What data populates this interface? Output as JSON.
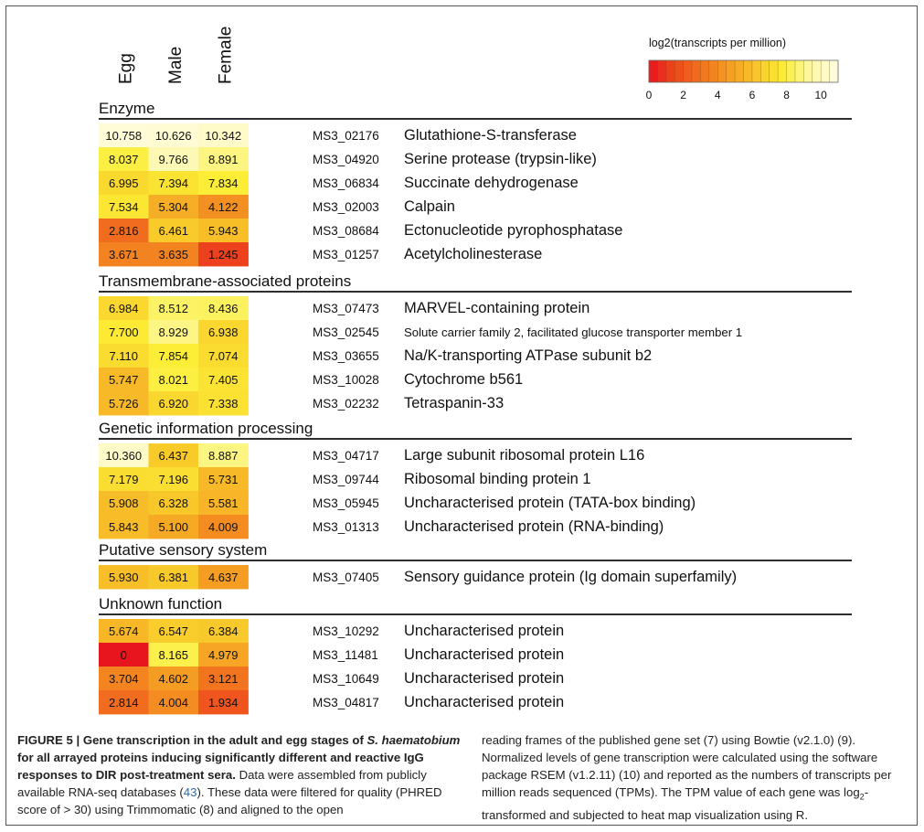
{
  "chart_data": {
    "type": "heatmap",
    "columns": [
      "Egg",
      "Male",
      "Female"
    ],
    "legend": {
      "title": "log2(transcripts per million)",
      "ticks": [
        0,
        2,
        4,
        6,
        8,
        10
      ],
      "range": [
        0,
        11
      ],
      "colors": [
        "#e8141e",
        "#ee4b1c",
        "#f2751f",
        "#f59f23",
        "#f8c72a",
        "#fcee36",
        "#fdf8a8",
        "#fffde0"
      ]
    },
    "groups": [
      {
        "title": "Enzyme",
        "rows": [
          {
            "id": "MS3_02176",
            "name": "Glutathione-S-transferase",
            "values": [
              10.758,
              10.626,
              10.342
            ],
            "labels": [
              "10.758",
              "10.626",
              "10.342"
            ]
          },
          {
            "id": "MS3_04920",
            "name": "Serine protease (trypsin-like)",
            "values": [
              8.037,
              9.766,
              8.891
            ],
            "labels": [
              "8.037",
              "9.766",
              "8.891"
            ]
          },
          {
            "id": "MS3_06834",
            "name": "Succinate dehydrogenase",
            "values": [
              6.995,
              7.394,
              7.834
            ],
            "labels": [
              "6.995",
              "7.394",
              "7.834"
            ]
          },
          {
            "id": "MS3_02003",
            "name": "Calpain",
            "values": [
              7.534,
              5.304,
              4.122
            ],
            "labels": [
              "7.534",
              "5.304",
              "4.122"
            ]
          },
          {
            "id": "MS3_08684",
            "name": "Ectonucleotide pyrophosphatase",
            "values": [
              2.816,
              6.461,
              5.943
            ],
            "labels": [
              "2.816",
              "6.461",
              "5.943"
            ]
          },
          {
            "id": "MS3_01257",
            "name": "Acetylcholinesterase",
            "values": [
              3.671,
              3.635,
              1.245
            ],
            "labels": [
              "3.671",
              "3.635",
              "1.245"
            ]
          }
        ]
      },
      {
        "title": "Transmembrane-associated proteins",
        "rows": [
          {
            "id": "MS3_07473",
            "name": "MARVEL-containing protein",
            "values": [
              6.984,
              8.512,
              8.436
            ],
            "labels": [
              "6.984",
              "8.512",
              "8.436"
            ]
          },
          {
            "id": "MS3_02545",
            "name": "Solute carrier family 2, facilitated glucose transporter member 1",
            "values": [
              7.7,
              8.929,
              6.938
            ],
            "labels": [
              "7.700",
              "8.929",
              "6.938"
            ],
            "small": true
          },
          {
            "id": "MS3_03655",
            "name": "Na/K-transporting ATPase subunit b2",
            "values": [
              7.11,
              7.854,
              7.074
            ],
            "labels": [
              "7.110",
              "7.854",
              "7.074"
            ]
          },
          {
            "id": "MS3_10028",
            "name": "Cytochrome b561",
            "values": [
              5.747,
              8.021,
              7.405
            ],
            "labels": [
              "5.747",
              "8.021",
              "7.405"
            ]
          },
          {
            "id": "MS3_02232",
            "name": "Tetraspanin-33",
            "values": [
              5.726,
              6.92,
              7.338
            ],
            "labels": [
              "5.726",
              "6.920",
              "7.338"
            ]
          }
        ]
      },
      {
        "title": "Genetic information processing",
        "rows": [
          {
            "id": "MS3_04717",
            "name": "Large subunit ribosomal protein L16",
            "values": [
              10.36,
              6.437,
              8.887
            ],
            "labels": [
              "10.360",
              "6.437",
              "8.887"
            ]
          },
          {
            "id": "MS3_09744",
            "name": "Ribosomal binding protein 1",
            "values": [
              7.179,
              7.196,
              5.731
            ],
            "labels": [
              "7.179",
              "7.196",
              "5.731"
            ]
          },
          {
            "id": "MS3_05945",
            "name": "Uncharacterised protein (TATA-box binding)",
            "values": [
              5.908,
              6.328,
              5.581
            ],
            "labels": [
              "5.908",
              "6.328",
              "5.581"
            ]
          },
          {
            "id": "MS3_01313",
            "name": "Uncharacterised protein (RNA-binding)",
            "values": [
              5.843,
              5.1,
              4.009
            ],
            "labels": [
              "5.843",
              "5.100",
              "4.009"
            ]
          }
        ]
      },
      {
        "title": "Putative sensory system",
        "rows": [
          {
            "id": "MS3_07405",
            "name": "Sensory guidance protein (Ig domain superfamily)",
            "values": [
              5.93,
              6.381,
              4.637
            ],
            "labels": [
              "5.930",
              "6.381",
              "4.637"
            ]
          }
        ]
      },
      {
        "title": "Unknown function",
        "rows": [
          {
            "id": "MS3_10292",
            "name": "Uncharacterised protein",
            "values": [
              5.674,
              6.547,
              6.384
            ],
            "labels": [
              "5.674",
              "6.547",
              "6.384"
            ]
          },
          {
            "id": "MS3_11481",
            "name": "Uncharacterised protein",
            "values": [
              0,
              8.165,
              4.979
            ],
            "labels": [
              "0",
              "8.165",
              "4.979"
            ]
          },
          {
            "id": "MS3_10649",
            "name": "Uncharacterised protein",
            "values": [
              3.704,
              4.602,
              3.121
            ],
            "labels": [
              "3.704",
              "4.602",
              "3.121"
            ]
          },
          {
            "id": "MS3_04817",
            "name": "Uncharacterised protein",
            "values": [
              2.814,
              4.004,
              1.934
            ],
            "labels": [
              "2.814",
              "4.004",
              "1.934"
            ]
          }
        ]
      }
    ]
  },
  "caption": {
    "label": "FIGURE 5 | Gene transcription in the adult and egg stages of ",
    "species": "S. haematobium",
    "title_rest": " for all arrayed proteins inducing significantly different and reactive IgG responses to DIR post-treatment sera.",
    "left_text_1": " Data were assembled from publicly available RNA-seq databases (",
    "ref": "43",
    "left_text_2": "). These data were filtered for quality (PHRED score of > 30) using Trimmomatic (8) and aligned to the open",
    "right_text_1": "reading frames of the published gene set (7) using Bowtie (v2.1.0) (9). Normalized levels of gene transcription were calculated using the software package RSEM (v1.2.11) (10) and reported as the numbers of transcripts per million reads sequenced (TPMs). The TPM value of each gene was log",
    "right_sub": "2",
    "right_text_2": "-transformed and subjected to heat map visualization using R."
  }
}
